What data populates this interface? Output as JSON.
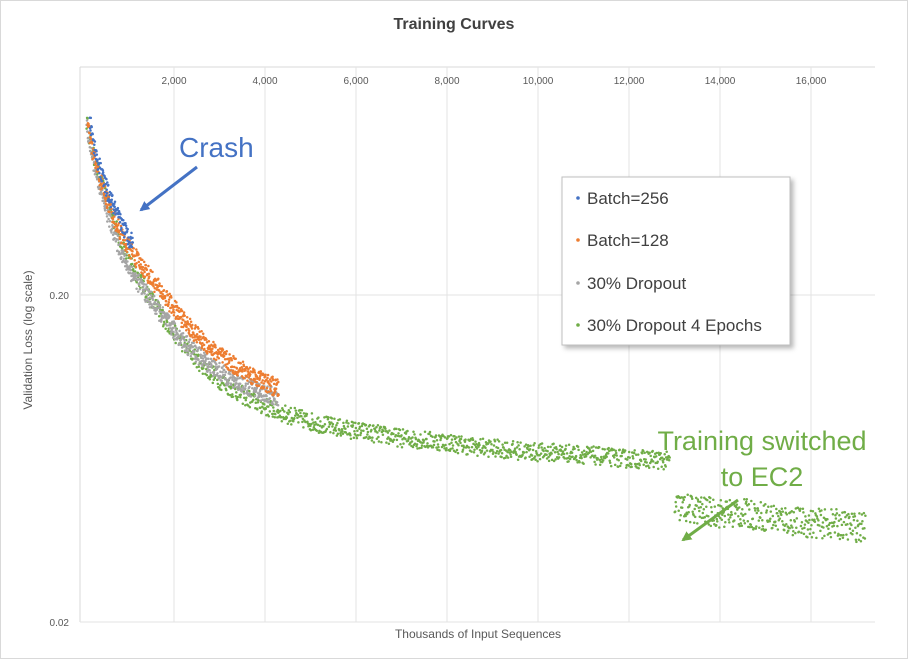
{
  "chart_data": {
    "type": "scatter",
    "title": "Training  Curves",
    "xlabel": "Thousands of Input Sequences",
    "ylabel": "Validation Loss (log scale)",
    "x_scale": "linear",
    "y_scale": "log",
    "xlim": [
      0,
      17500
    ],
    "ylim": [
      0.02,
      0.7
    ],
    "x_ticks": [
      {
        "value": 2000,
        "label": "2,000"
      },
      {
        "value": 4000,
        "label": "4,000"
      },
      {
        "value": 6000,
        "label": "6,000"
      },
      {
        "value": 8000,
        "label": "8,000"
      },
      {
        "value": 10000,
        "label": "10,000"
      },
      {
        "value": 12000,
        "label": "12,000"
      },
      {
        "value": 14000,
        "label": "14,000"
      },
      {
        "value": 16000,
        "label": "16,000"
      }
    ],
    "y_ticks": [
      {
        "value": 0.2,
        "label": "0.20"
      },
      {
        "value": 0.02,
        "label": "0.02"
      }
    ],
    "grid": true,
    "legend": {
      "position": "upper-right",
      "entries": [
        "Batch=256",
        "Batch=128",
        "30% Dropout",
        "30% Dropout 4 Epochs"
      ]
    },
    "series": [
      {
        "name": "Batch=256",
        "color": "#4472c4",
        "points": [
          [
            150,
            0.68
          ],
          [
            200,
            0.62
          ],
          [
            250,
            0.57
          ],
          [
            300,
            0.53
          ],
          [
            350,
            0.5
          ],
          [
            400,
            0.47
          ],
          [
            450,
            0.45
          ],
          [
            500,
            0.43
          ],
          [
            550,
            0.41
          ],
          [
            600,
            0.395
          ],
          [
            650,
            0.38
          ],
          [
            700,
            0.365
          ],
          [
            750,
            0.35
          ],
          [
            800,
            0.34
          ],
          [
            850,
            0.33
          ],
          [
            900,
            0.32
          ],
          [
            950,
            0.31
          ],
          [
            1000,
            0.3
          ],
          [
            1050,
            0.295
          ],
          [
            1100,
            0.29
          ]
        ]
      },
      {
        "name": "Batch=128",
        "color": "#ed7d31",
        "points": [
          [
            100,
            0.66
          ],
          [
            200,
            0.56
          ],
          [
            300,
            0.49
          ],
          [
            400,
            0.44
          ],
          [
            500,
            0.4
          ],
          [
            600,
            0.37
          ],
          [
            700,
            0.34
          ],
          [
            800,
            0.315
          ],
          [
            900,
            0.295
          ],
          [
            1000,
            0.28
          ],
          [
            1200,
            0.255
          ],
          [
            1400,
            0.235
          ],
          [
            1600,
            0.215
          ],
          [
            1800,
            0.198
          ],
          [
            2000,
            0.182
          ],
          [
            2200,
            0.168
          ],
          [
            2400,
            0.156
          ],
          [
            2600,
            0.146
          ],
          [
            2800,
            0.138
          ],
          [
            3000,
            0.131
          ],
          [
            3200,
            0.125
          ],
          [
            3400,
            0.12
          ],
          [
            3600,
            0.116
          ],
          [
            3800,
            0.112
          ],
          [
            4000,
            0.108
          ],
          [
            4200,
            0.105
          ],
          [
            4300,
            0.103
          ]
        ]
      },
      {
        "name": "30% Dropout",
        "color": "#a5a5a5",
        "points": [
          [
            80,
            0.66
          ],
          [
            150,
            0.58
          ],
          [
            250,
            0.5
          ],
          [
            350,
            0.44
          ],
          [
            450,
            0.39
          ],
          [
            550,
            0.35
          ],
          [
            650,
            0.32
          ],
          [
            750,
            0.29
          ],
          [
            850,
            0.27
          ],
          [
            950,
            0.25
          ],
          [
            1100,
            0.23
          ],
          [
            1300,
            0.21
          ],
          [
            1500,
            0.192
          ],
          [
            1700,
            0.176
          ],
          [
            1900,
            0.162
          ],
          [
            2100,
            0.15
          ],
          [
            2300,
            0.14
          ],
          [
            2500,
            0.132
          ],
          [
            2700,
            0.125
          ],
          [
            2900,
            0.119
          ],
          [
            3100,
            0.114
          ],
          [
            3300,
            0.11
          ],
          [
            3500,
            0.107
          ],
          [
            3700,
            0.104
          ],
          [
            3900,
            0.101
          ],
          [
            4100,
            0.099
          ],
          [
            4300,
            0.097
          ]
        ]
      },
      {
        "name": "30% Dropout 4 Epochs",
        "color": "#70ad47",
        "points": [
          [
            80,
            0.68
          ],
          [
            200,
            0.55
          ],
          [
            400,
            0.44
          ],
          [
            600,
            0.36
          ],
          [
            800,
            0.3
          ],
          [
            1000,
            0.26
          ],
          [
            1200,
            0.23
          ],
          [
            1400,
            0.205
          ],
          [
            1600,
            0.185
          ],
          [
            1800,
            0.168
          ],
          [
            2000,
            0.154
          ],
          [
            2200,
            0.142
          ],
          [
            2400,
            0.132
          ],
          [
            2600,
            0.123
          ],
          [
            2800,
            0.116
          ],
          [
            3000,
            0.11
          ],
          [
            3200,
            0.105
          ],
          [
            3400,
            0.101
          ],
          [
            3600,
            0.097
          ],
          [
            3800,
            0.094
          ],
          [
            4000,
            0.091
          ],
          [
            4500,
            0.086
          ],
          [
            5000,
            0.082
          ],
          [
            5500,
            0.079
          ],
          [
            6000,
            0.077
          ],
          [
            6500,
            0.075
          ],
          [
            7000,
            0.073
          ],
          [
            7500,
            0.072
          ],
          [
            8000,
            0.071
          ],
          [
            8500,
            0.069
          ],
          [
            9000,
            0.068
          ],
          [
            9500,
            0.067
          ],
          [
            10000,
            0.066
          ],
          [
            10500,
            0.066
          ],
          [
            11000,
            0.065
          ],
          [
            11500,
            0.064
          ],
          [
            12000,
            0.063
          ],
          [
            12500,
            0.063
          ],
          [
            12900,
            0.062
          ],
          [
            13000,
            0.045
          ],
          [
            13500,
            0.044
          ],
          [
            14000,
            0.043
          ],
          [
            14500,
            0.043
          ],
          [
            15000,
            0.042
          ],
          [
            15500,
            0.041
          ],
          [
            16000,
            0.04
          ],
          [
            16500,
            0.04
          ],
          [
            17000,
            0.039
          ],
          [
            17200,
            0.039
          ]
        ]
      }
    ],
    "annotations": [
      {
        "text": "Crash",
        "color": "#4472c4"
      },
      {
        "text_lines": [
          "Training switched",
          "to EC2"
        ],
        "color": "#70ad47"
      }
    ]
  }
}
